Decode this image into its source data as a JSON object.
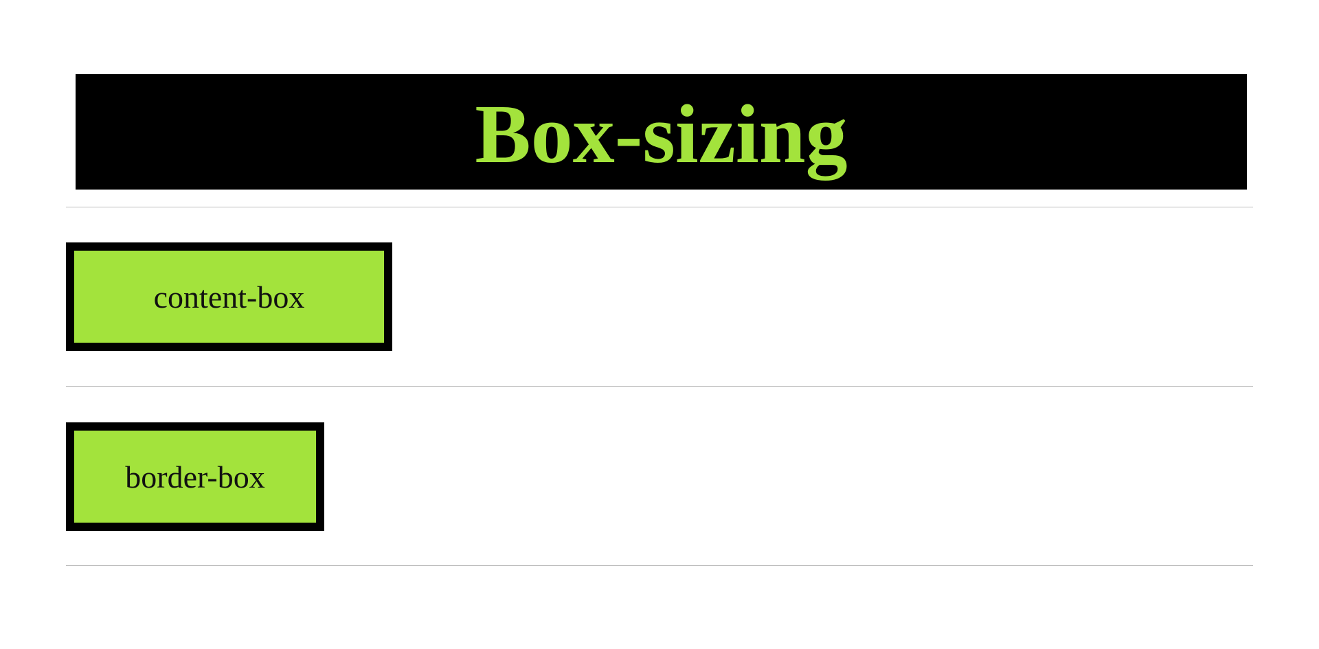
{
  "page": {
    "title": "Box-sizing"
  },
  "boxes": [
    {
      "label": "content-box"
    },
    {
      "label": "border-box"
    }
  ],
  "colors": {
    "accent": "#a3e33c",
    "banner_background": "#000000",
    "box_border": "#000000",
    "divider": "#bdbdbd",
    "background": "#ffffff"
  }
}
